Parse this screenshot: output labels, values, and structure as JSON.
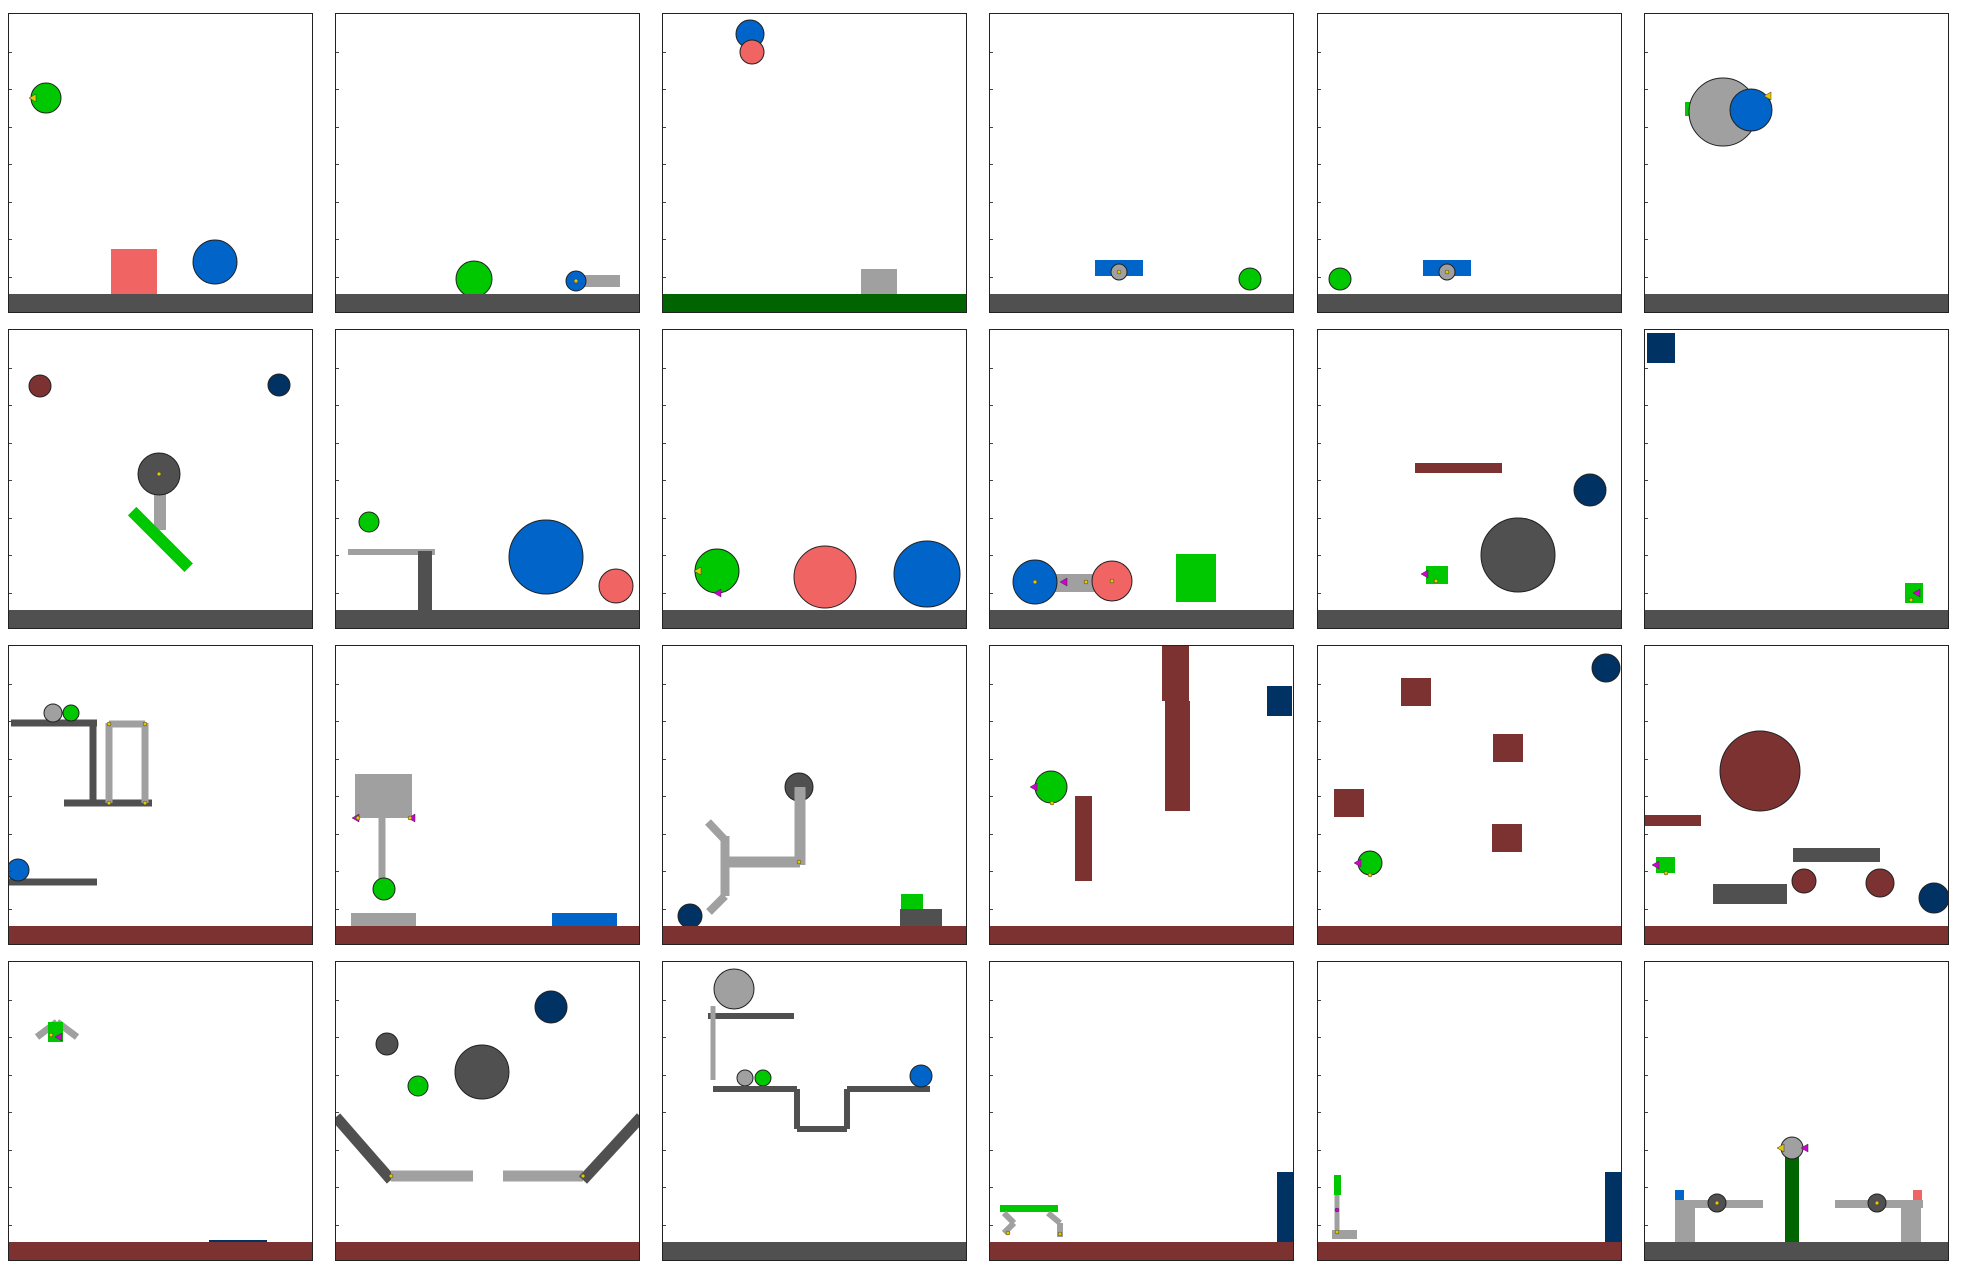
{
  "title": "",
  "grid": {
    "rows": 4,
    "cols": 6
  },
  "colors": {
    "green": "#00c800",
    "blue": "#0064c8",
    "red": "#f06464",
    "navy": "#003264",
    "maroon": "#7d3232",
    "dark_gray": "#505050",
    "light_gray": "#a0a0a0",
    "dark_green": "#006400",
    "yellow": "#e6c800",
    "magenta": "#d000d0"
  },
  "panels": [
    {
      "id": "p1",
      "floor": "dark_gray",
      "objects": [
        {
          "kind": "circle",
          "color": "green",
          "role": "user-ball"
        },
        {
          "kind": "box",
          "color": "red",
          "role": "box"
        },
        {
          "kind": "circle",
          "color": "blue",
          "role": "ball"
        }
      ]
    },
    {
      "id": "p2",
      "floor": "dark_gray",
      "objects": [
        {
          "kind": "circle",
          "color": "green",
          "role": "user-ball"
        },
        {
          "kind": "circle",
          "color": "blue",
          "role": "ball"
        },
        {
          "kind": "bar",
          "color": "light_gray",
          "role": "bar"
        }
      ]
    },
    {
      "id": "p3",
      "floor": "dark_green",
      "objects": [
        {
          "kind": "circle",
          "color": "blue",
          "role": "ball"
        },
        {
          "kind": "circle",
          "color": "red",
          "role": "ball"
        },
        {
          "kind": "box",
          "color": "light_gray",
          "role": "box"
        }
      ]
    },
    {
      "id": "p4",
      "floor": "dark_gray",
      "objects": [
        {
          "kind": "bar",
          "color": "blue",
          "role": "bar"
        },
        {
          "kind": "circle",
          "color": "light_gray",
          "role": "wheel"
        },
        {
          "kind": "circle",
          "color": "green",
          "role": "user-ball"
        }
      ]
    },
    {
      "id": "p5",
      "floor": "dark_gray",
      "objects": [
        {
          "kind": "circle",
          "color": "green",
          "role": "user-ball"
        },
        {
          "kind": "bar",
          "color": "blue",
          "role": "bar"
        },
        {
          "kind": "circle",
          "color": "light_gray",
          "role": "wheel"
        }
      ]
    },
    {
      "id": "p6",
      "floor": "dark_gray",
      "objects": [
        {
          "kind": "circle",
          "color": "light_gray",
          "role": "ball"
        },
        {
          "kind": "circle",
          "color": "blue",
          "role": "ball"
        },
        {
          "kind": "box",
          "color": "green",
          "role": "box"
        }
      ]
    },
    {
      "id": "p7",
      "floor": "dark_gray",
      "objects": [
        {
          "kind": "circle",
          "color": "maroon",
          "role": "ball"
        },
        {
          "kind": "circle",
          "color": "navy",
          "role": "ball"
        },
        {
          "kind": "circle",
          "color": "dark_gray",
          "role": "ball"
        },
        {
          "kind": "bar",
          "color": "green",
          "role": "bar"
        }
      ]
    },
    {
      "id": "p8",
      "floor": "dark_gray",
      "objects": [
        {
          "kind": "circle",
          "color": "green",
          "role": "user-ball"
        },
        {
          "kind": "circle",
          "color": "blue",
          "role": "ball"
        },
        {
          "kind": "circle",
          "color": "red",
          "role": "ball"
        }
      ]
    },
    {
      "id": "p9",
      "floor": "dark_gray",
      "objects": [
        {
          "kind": "circle",
          "color": "green",
          "role": "user-ball"
        },
        {
          "kind": "circle",
          "color": "red",
          "role": "ball"
        },
        {
          "kind": "circle",
          "color": "blue",
          "role": "ball"
        }
      ]
    },
    {
      "id": "p10",
      "floor": "dark_gray",
      "objects": [
        {
          "kind": "circle",
          "color": "blue",
          "role": "ball"
        },
        {
          "kind": "circle",
          "color": "red",
          "role": "ball"
        },
        {
          "kind": "box",
          "color": "green",
          "role": "box"
        }
      ]
    },
    {
      "id": "p11",
      "floor": "dark_gray",
      "objects": [
        {
          "kind": "bar",
          "color": "maroon",
          "role": "bar"
        },
        {
          "kind": "circle",
          "color": "navy",
          "role": "ball"
        },
        {
          "kind": "circle",
          "color": "dark_gray",
          "role": "ball"
        },
        {
          "kind": "box",
          "color": "green",
          "role": "box"
        }
      ]
    },
    {
      "id": "p12",
      "floor": "dark_gray",
      "objects": [
        {
          "kind": "box",
          "color": "navy",
          "role": "box"
        },
        {
          "kind": "box",
          "color": "green",
          "role": "box"
        }
      ]
    },
    {
      "id": "p13",
      "floor": "maroon",
      "objects": [
        {
          "kind": "circle",
          "color": "light_gray",
          "role": "ball"
        },
        {
          "kind": "circle",
          "color": "green",
          "role": "user-ball"
        },
        {
          "kind": "circle",
          "color": "blue",
          "role": "ball"
        }
      ]
    },
    {
      "id": "p14",
      "floor": "maroon",
      "objects": [
        {
          "kind": "box",
          "color": "light_gray",
          "role": "box"
        },
        {
          "kind": "circle",
          "color": "green",
          "role": "user-ball"
        },
        {
          "kind": "bar",
          "color": "blue",
          "role": "bar"
        }
      ]
    },
    {
      "id": "p15",
      "floor": "maroon",
      "objects": [
        {
          "kind": "circle",
          "color": "dark_gray",
          "role": "ball"
        },
        {
          "kind": "circle",
          "color": "navy",
          "role": "ball"
        },
        {
          "kind": "box",
          "color": "green",
          "role": "box"
        }
      ]
    },
    {
      "id": "p16",
      "floor": "maroon",
      "objects": [
        {
          "kind": "circle",
          "color": "green",
          "role": "user-ball"
        },
        {
          "kind": "box",
          "color": "navy",
          "role": "box"
        },
        {
          "kind": "bar",
          "color": "maroon",
          "role": "bar"
        }
      ]
    },
    {
      "id": "p17",
      "floor": "maroon",
      "objects": [
        {
          "kind": "circle",
          "color": "navy",
          "role": "ball"
        },
        {
          "kind": "circle",
          "color": "green",
          "role": "user-ball"
        },
        {
          "kind": "box",
          "color": "maroon",
          "role": "box"
        }
      ]
    },
    {
      "id": "p18",
      "floor": "maroon",
      "objects": [
        {
          "kind": "circle",
          "color": "maroon",
          "role": "ball"
        },
        {
          "kind": "box",
          "color": "green",
          "role": "box"
        },
        {
          "kind": "circle",
          "color": "navy",
          "role": "ball"
        }
      ]
    },
    {
      "id": "p19",
      "floor": "maroon",
      "objects": [
        {
          "kind": "box",
          "color": "green",
          "role": "box"
        },
        {
          "kind": "bar",
          "color": "navy",
          "role": "bar"
        }
      ]
    },
    {
      "id": "p20",
      "floor": "maroon",
      "objects": [
        {
          "kind": "circle",
          "color": "navy",
          "role": "ball"
        },
        {
          "kind": "circle",
          "color": "dark_gray",
          "role": "ball"
        },
        {
          "kind": "circle",
          "color": "green",
          "role": "user-ball"
        }
      ]
    },
    {
      "id": "p21",
      "floor": "dark_gray",
      "objects": [
        {
          "kind": "circle",
          "color": "light_gray",
          "role": "ball"
        },
        {
          "kind": "circle",
          "color": "green",
          "role": "user-ball"
        },
        {
          "kind": "circle",
          "color": "blue",
          "role": "ball"
        }
      ]
    },
    {
      "id": "p22",
      "floor": "maroon",
      "objects": [
        {
          "kind": "bar",
          "color": "green",
          "role": "bar"
        },
        {
          "kind": "box",
          "color": "navy",
          "role": "box"
        }
      ]
    },
    {
      "id": "p23",
      "floor": "maroon",
      "objects": [
        {
          "kind": "bar",
          "color": "green",
          "role": "bar"
        },
        {
          "kind": "box",
          "color": "navy",
          "role": "box"
        }
      ]
    },
    {
      "id": "p24",
      "floor": "dark_gray",
      "objects": [
        {
          "kind": "bar",
          "color": "dark_green",
          "role": "bar"
        },
        {
          "kind": "circle",
          "color": "light_gray",
          "role": "ball"
        },
        {
          "kind": "box",
          "color": "blue",
          "role": "box"
        },
        {
          "kind": "box",
          "color": "red",
          "role": "box"
        }
      ]
    }
  ]
}
